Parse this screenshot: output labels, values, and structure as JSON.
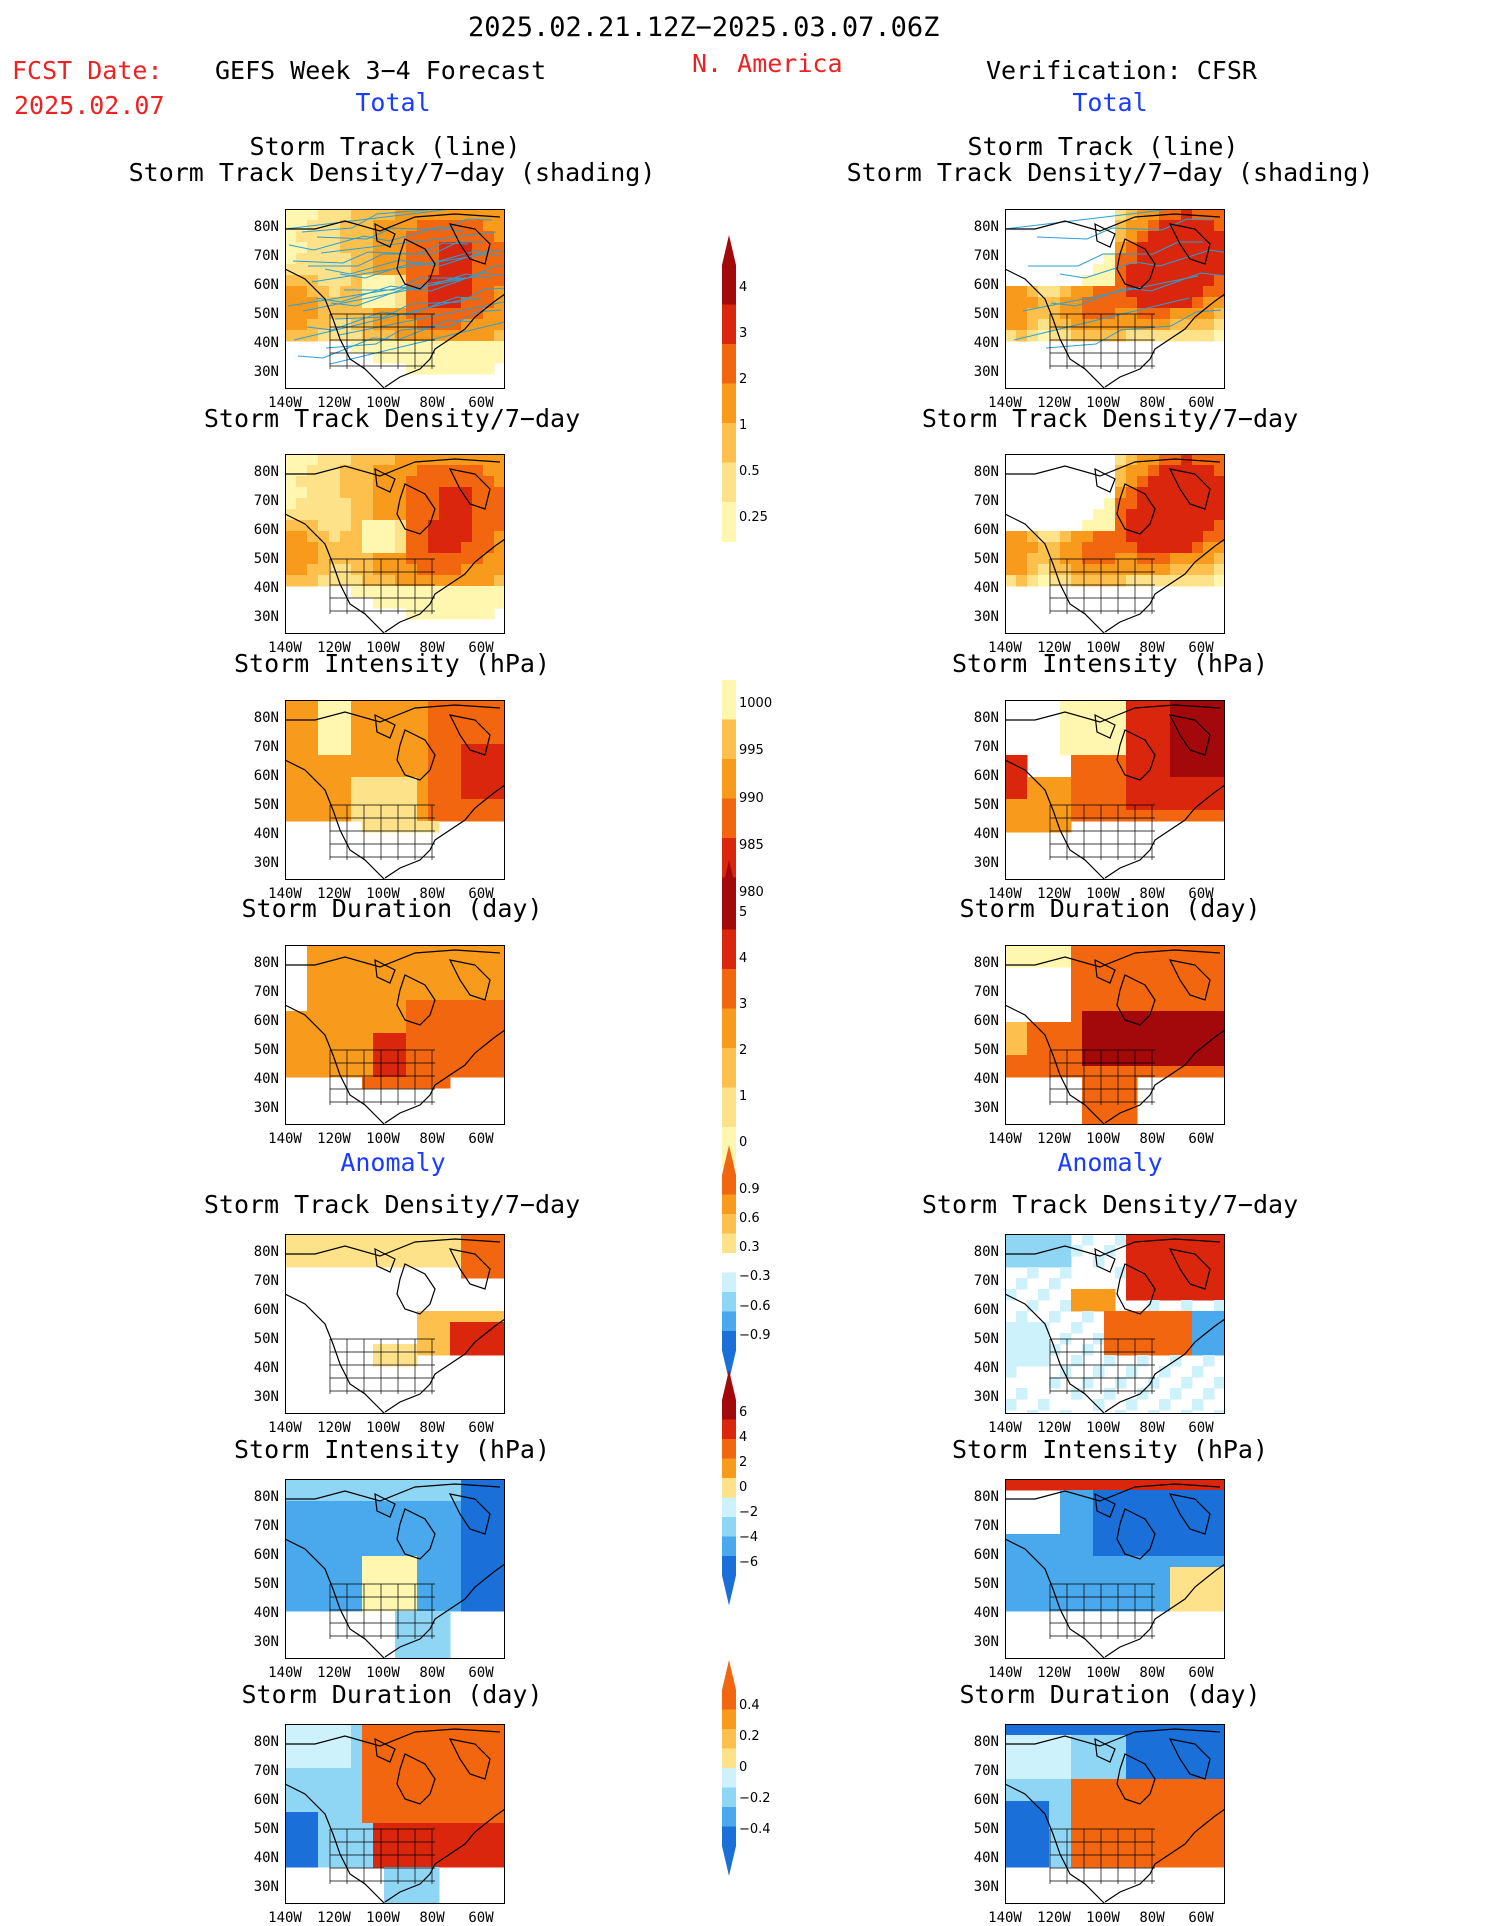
{
  "header": {
    "date_range": "2025.02.21.12Z−2025.03.07.06Z",
    "fcst_label": "FCST Date:",
    "fcst_date": "2025.02.07",
    "forecast_title": "GEFS Week 3−4 Forecast",
    "region": "N. America",
    "verification": "Verification: CFSR"
  },
  "sections": {
    "total_left": "Total",
    "total_right": "Total",
    "anomaly_left": "Anomaly",
    "anomaly_right": "Anomaly"
  },
  "panel_titles": {
    "track_line": "Storm Track (line)",
    "track_shading": "Storm Track Density/7−day (shading)",
    "density": "Storm Track Density/7−day",
    "intensity": "Storm Intensity (hPa)",
    "duration": "Storm Duration (day)"
  },
  "axes": {
    "lat_ticks": [
      "80N",
      "70N",
      "60N",
      "50N",
      "40N",
      "30N"
    ],
    "lon_ticks": [
      "140W",
      "120W",
      "100W",
      "80W",
      "60W"
    ]
  },
  "colorbars": {
    "density_total": [
      "4",
      "3",
      "2",
      "1",
      "0.5",
      "0.25"
    ],
    "intensity_total": [
      "1000",
      "995",
      "990",
      "985",
      "980"
    ],
    "duration_total": [
      "5",
      "4",
      "3",
      "2",
      "1",
      "0"
    ],
    "density_anom": [
      "0.9",
      "0.6",
      "0.3",
      "−0.3",
      "−0.6",
      "−0.9"
    ],
    "intensity_anom": [
      "6",
      "4",
      "2",
      "0",
      "−2",
      "−4",
      "−6"
    ],
    "duration_anom": [
      "0.4",
      "0.2",
      "0",
      "−0.2",
      "−0.4"
    ]
  },
  "colors": {
    "warm": [
      "#fff6b0",
      "#fde28a",
      "#fdc04d",
      "#f89a1c",
      "#f2660f",
      "#d9260c",
      "#a3080a"
    ],
    "cool": [
      "#cdf2fb",
      "#8fd6f5",
      "#4aa8ec",
      "#1a6fd9",
      "#0f48b0"
    ],
    "track_lines": "#2aa0d4",
    "title_blue": "#1a3cff",
    "title_red": "#ee2222"
  }
}
